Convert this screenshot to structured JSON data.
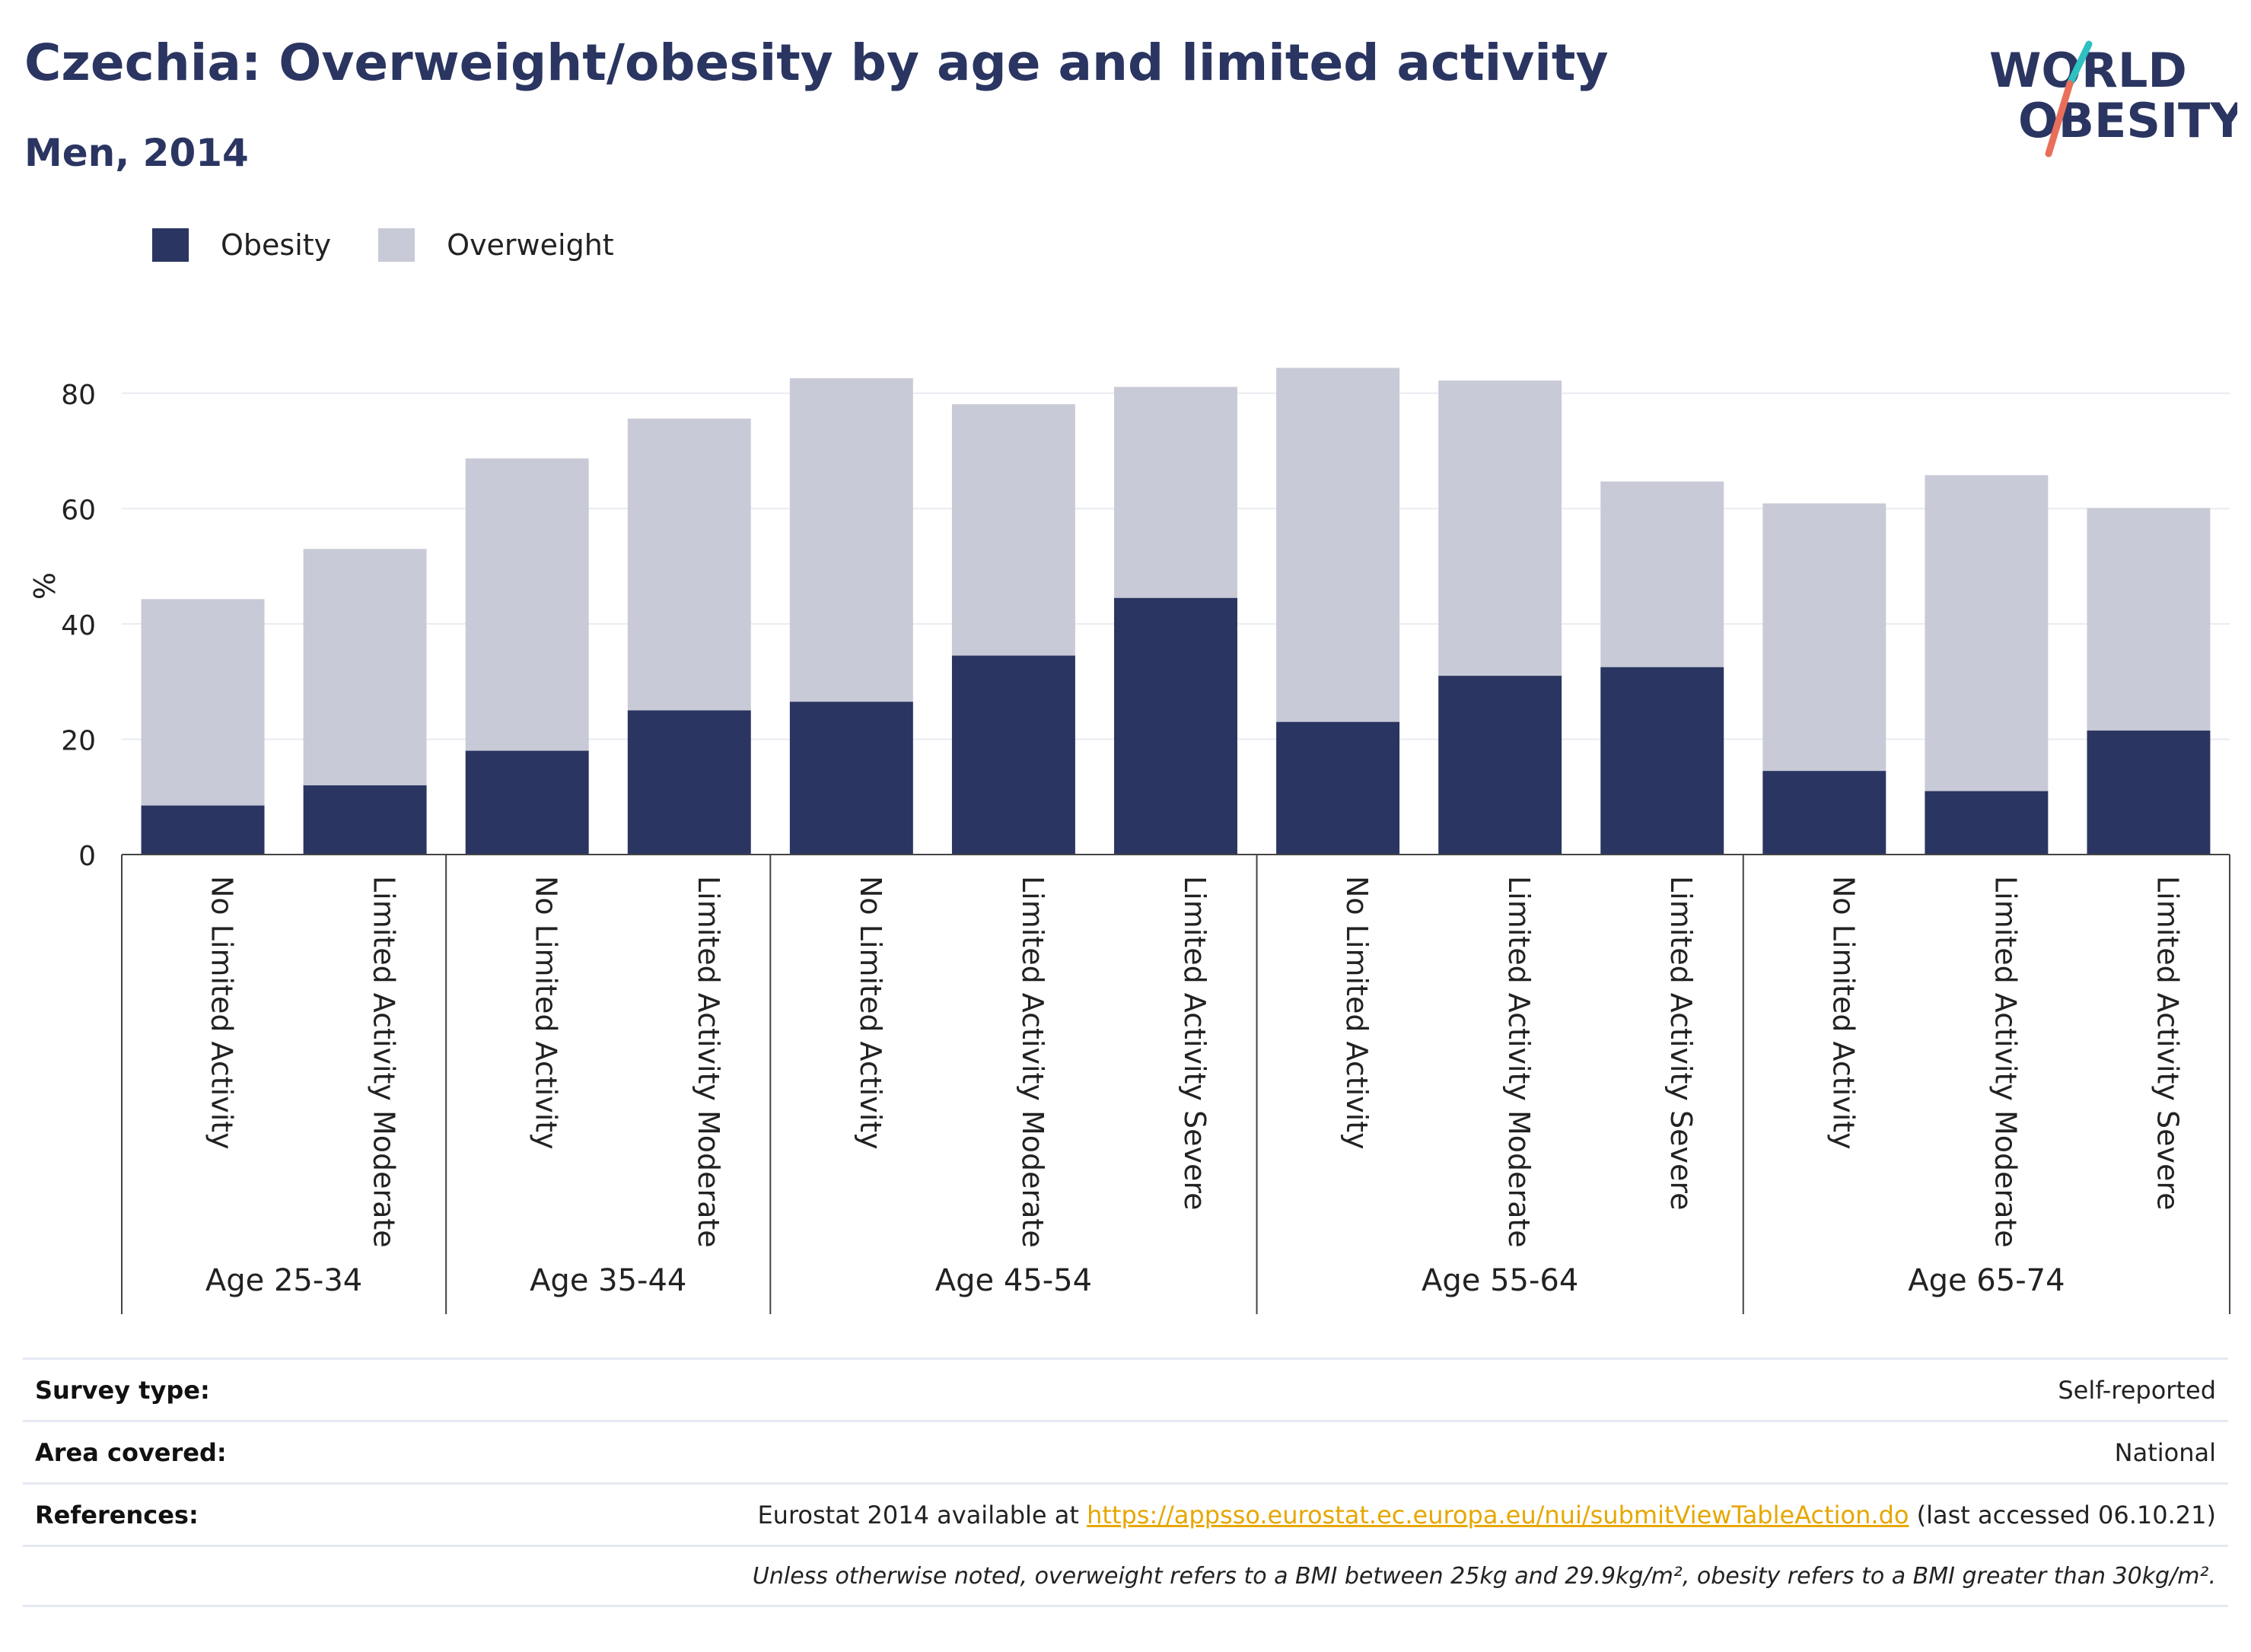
{
  "title": "Czechia: Overweight/obesity by age and limited activity",
  "subtitle": "Men, 2014",
  "logo": {
    "line1": "WORLD",
    "line2": "OBESITY"
  },
  "colors": {
    "obesity": "#2a3561",
    "overweight": "#c8cad7",
    "title": "#2a3561",
    "link": "#e6a700",
    "accent_red": "#e96f5b",
    "accent_teal": "#2fc0c2"
  },
  "legend": [
    {
      "label": "Obesity",
      "color": "#2a3561"
    },
    {
      "label": "Overweight",
      "color": "#c8cad7"
    }
  ],
  "chart_data": {
    "type": "bar",
    "stacked": true,
    "ylabel": "%",
    "ylim": [
      0,
      90
    ],
    "yticks": [
      0,
      20,
      40,
      60,
      80
    ],
    "grid": true,
    "legend_position": "top-left",
    "groups": [
      {
        "label": "Age 25-34",
        "categories": [
          "No Limited Activity",
          "Limited Activity Moderate"
        ]
      },
      {
        "label": "Age 35-44",
        "categories": [
          "No Limited Activity",
          "Limited Activity Moderate"
        ]
      },
      {
        "label": "Age 45-54",
        "categories": [
          "No Limited Activity",
          "Limited Activity Moderate",
          "Limited Activity Severe"
        ]
      },
      {
        "label": "Age 55-64",
        "categories": [
          "No Limited Activity",
          "Limited Activity Moderate",
          "Limited Activity Severe"
        ]
      },
      {
        "label": "Age 65-74",
        "categories": [
          "No Limited Activity",
          "Limited Activity Moderate",
          "Limited Activity Severe"
        ]
      }
    ],
    "series": [
      {
        "name": "Obesity",
        "values": [
          8.5,
          12.0,
          18.0,
          25.0,
          26.5,
          34.5,
          44.5,
          23.0,
          31.0,
          32.5,
          14.5,
          11.0,
          21.5
        ]
      },
      {
        "name": "Overweight",
        "values": [
          35.8,
          41.0,
          50.7,
          50.6,
          56.1,
          43.6,
          36.6,
          61.4,
          51.2,
          32.2,
          46.4,
          54.8,
          38.6
        ]
      }
    ]
  },
  "info": {
    "survey_label": "Survey type:",
    "survey_value": "Self-reported",
    "area_label": "Area covered:",
    "area_value": "National",
    "references_label": "References:",
    "references_prefix": "Eurostat 2014 available at ",
    "references_link": "https://appsso.eurostat.ec.europa.eu/nui/submitViewTableAction.do",
    "references_suffix": " (last accessed 06.10.21)",
    "note": "Unless otherwise noted, overweight refers to a BMI between 25kg and 29.9kg/m², obesity refers to a BMI greater than 30kg/m²."
  }
}
